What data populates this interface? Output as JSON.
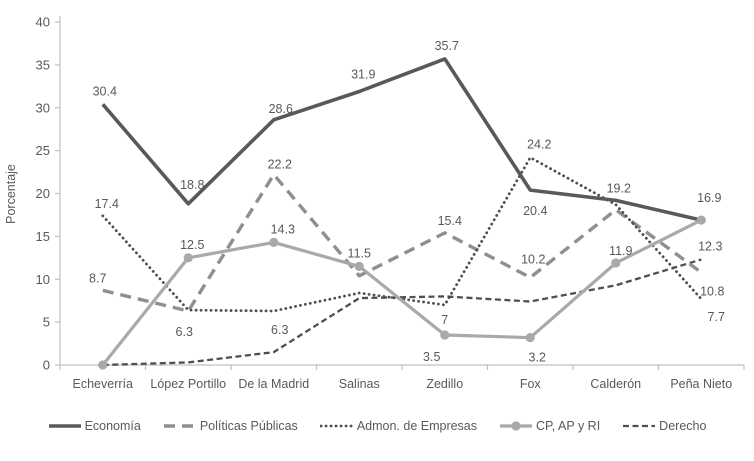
{
  "chart_data": {
    "type": "line",
    "title": "",
    "xlabel": "",
    "ylabel": "Porcentaje",
    "ylim": [
      0,
      40
    ],
    "yticks": [
      0,
      5,
      10,
      15,
      20,
      25,
      30,
      35,
      40
    ],
    "grid": false,
    "legend_position": "bottom",
    "categories": [
      "Echeverría",
      "López Portillo",
      "De la Madrid",
      "Salinas",
      "Zedillo",
      "Fox",
      "Calderón",
      "Peña Nieto"
    ],
    "series": [
      {
        "id": "economia",
        "name": "Economía",
        "color": "#595959",
        "dash": "solid",
        "width": 3.6,
        "marker": "none",
        "values": [
          30.4,
          18.8,
          28.6,
          31.9,
          35.7,
          20.4,
          19.2,
          16.9
        ],
        "point_labels": [
          {
            "text": "30.4",
            "dx": 2,
            "dy": -9
          },
          {
            "text": "18.8",
            "dx": 4,
            "dy": -15
          },
          {
            "text": "28.6",
            "dx": 7,
            "dy": -7
          },
          {
            "text": "31.9",
            "dx": 4,
            "dy": -13
          },
          {
            "text": "35.7",
            "dx": 2,
            "dy": -9
          },
          {
            "text": "20.4",
            "dx": 5,
            "dy": 25
          },
          {
            "text": "19.2",
            "dx": 3,
            "dy": -8
          },
          {
            "text": "16.9",
            "dx": 8,
            "dy": -18
          }
        ]
      },
      {
        "id": "politicas-publicas",
        "name": "Políticas Públicas",
        "color": "#8f8f8f",
        "dash": "11 7",
        "width": 3.4,
        "marker": "none",
        "values": [
          8.7,
          6.3,
          22.2,
          10.4,
          15.4,
          10.2,
          18.1,
          10.8
        ],
        "point_labels": [
          {
            "text": "8.7",
            "dx": -5,
            "dy": -8
          },
          {
            "text": "6.3",
            "dx": -4,
            "dy": 25
          },
          {
            "text": "22.2",
            "dx": 6,
            "dy": -6
          },
          null,
          {
            "text": "15.4",
            "dx": 5,
            "dy": -8
          },
          {
            "text": "10.2",
            "dx": 3,
            "dy": -14
          },
          null,
          {
            "text": "10.8",
            "dx": 11,
            "dy": 23
          }
        ]
      },
      {
        "id": "admon-empresas",
        "name": "Admon. de Empresas",
        "color": "#4f4f4f",
        "dash": "dot",
        "width": 2.8,
        "marker": "none",
        "values": [
          17.4,
          6.4,
          6.3,
          8.4,
          7,
          24.2,
          18.7,
          7.7
        ],
        "point_labels": [
          {
            "text": "17.4",
            "dx": 4,
            "dy": -8
          },
          null,
          {
            "text": "6.3",
            "dx": 6,
            "dy": 23
          },
          null,
          {
            "text": "7",
            "dx": 0,
            "dy": 19
          },
          {
            "text": "24.2",
            "dx": 9,
            "dy": -9
          },
          null,
          {
            "text": "7.7",
            "dx": 15,
            "dy": 22
          }
        ]
      },
      {
        "id": "cp-ap-ri",
        "name": "CP, AP y RI",
        "color": "#a9a9a9",
        "dash": "solid",
        "width": 3.2,
        "marker": "circle",
        "values": [
          0,
          12.5,
          14.3,
          11.5,
          3.5,
          3.2,
          11.9,
          16.9
        ],
        "point_labels": [
          null,
          {
            "text": "12.5",
            "dx": 4,
            "dy": -9
          },
          {
            "text": "14.3",
            "dx": 9,
            "dy": -9
          },
          {
            "text": "11.5",
            "dx": 0,
            "dy": -9
          },
          {
            "text": "3.5",
            "dx": -13,
            "dy": 26
          },
          {
            "text": "3.2",
            "dx": 7,
            "dy": 24
          },
          {
            "text": "11.9",
            "dx": 5,
            "dy": -8
          },
          null
        ]
      },
      {
        "id": "derecho",
        "name": "Derecho",
        "color": "#4f4f4f",
        "dash": "6 3.5",
        "width": 2.3,
        "marker": "none",
        "values": [
          0,
          0.3,
          1.5,
          7.8,
          8,
          7.4,
          9.3,
          12.3
        ],
        "point_labels": [
          null,
          null,
          null,
          null,
          null,
          null,
          null,
          {
            "text": "12.3",
            "dx": 9,
            "dy": -9
          }
        ]
      }
    ]
  },
  "style": {
    "axis_color": "#c0c0c0",
    "text_color": "#595959",
    "background": "#ffffff"
  }
}
